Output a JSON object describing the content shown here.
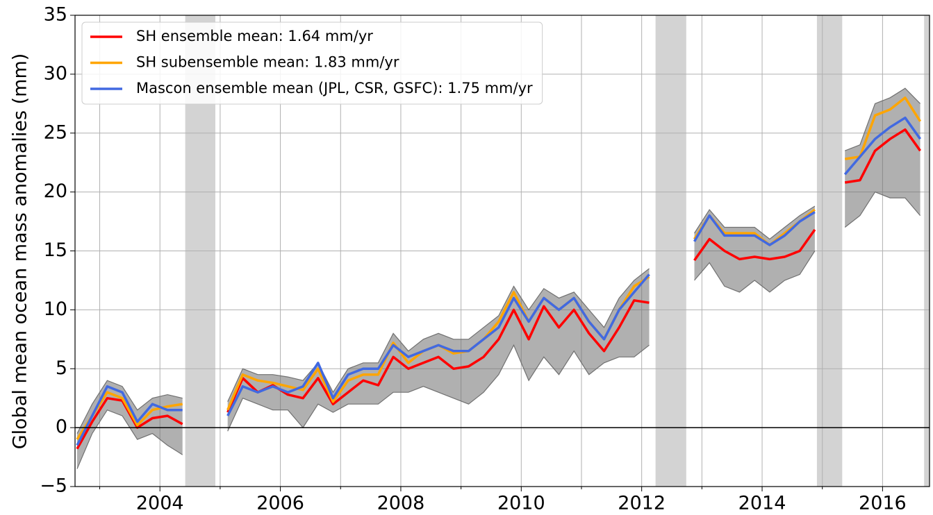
{
  "chart_data": {
    "type": "line",
    "ylabel": "Global mean ocean mass anomalies (mm)",
    "xlim": [
      2002.59,
      2016.78
    ],
    "ylim": [
      -5,
      35
    ],
    "xticks": [
      2004,
      2006,
      2008,
      2010,
      2012,
      2014,
      2016
    ],
    "xminorticks": [
      2003,
      2005,
      2007,
      2009,
      2011,
      2013,
      2015
    ],
    "yticks": [
      {
        "value": -5,
        "label": "−5"
      },
      0,
      5,
      10,
      15,
      20,
      25,
      30,
      35
    ],
    "grid": true,
    "legend": "upper left",
    "hline": 0,
    "gaps": [
      [
        2004.42,
        2004.92
      ],
      [
        2012.23,
        2012.74
      ],
      [
        2014.91,
        2015.33
      ],
      [
        2016.69,
        2016.78
      ]
    ],
    "gap_color": "#d3d3d3",
    "x": [
      2002.625,
      2002.875,
      2003.125,
      2003.375,
      2003.625,
      2003.875,
      2004.125,
      2004.375,
      2004.625,
      2004.875,
      2005.125,
      2005.375,
      2005.625,
      2005.875,
      2006.125,
      2006.375,
      2006.625,
      2006.875,
      2007.125,
      2007.375,
      2007.625,
      2007.875,
      2008.125,
      2008.375,
      2008.625,
      2008.875,
      2009.125,
      2009.375,
      2009.625,
      2009.875,
      2010.125,
      2010.375,
      2010.625,
      2010.875,
      2011.125,
      2011.375,
      2011.625,
      2011.875,
      2012.125,
      2012.375,
      2012.625,
      2012.875,
      2013.125,
      2013.375,
      2013.625,
      2013.875,
      2014.125,
      2014.375,
      2014.625,
      2014.875,
      2015.125,
      2015.375,
      2015.625,
      2015.875,
      2016.125,
      2016.375,
      2016.625
    ],
    "ensemble_color": "#707070",
    "ensemble_low": [
      -3.5,
      -0.5,
      1.5,
      1.0,
      -1.0,
      -0.5,
      -1.5,
      -2.3,
      null,
      null,
      -0.3,
      2.5,
      2.0,
      1.5,
      1.5,
      0,
      2.0,
      1.3,
      2.0,
      2.0,
      2.0,
      3.0,
      3.0,
      3.5,
      3.0,
      2.5,
      2.0,
      3.0,
      4.5,
      7.0,
      4.0,
      6.0,
      4.5,
      6.5,
      4.5,
      5.5,
      6.0,
      6.0,
      7.0,
      null,
      null,
      12.5,
      14.0,
      12.0,
      11.5,
      12.5,
      11.5,
      12.5,
      13.0,
      15.0,
      null,
      17.0,
      18.0,
      20.0,
      19.5,
      19.5,
      18.0
    ],
    "ensemble_high": [
      -0.5,
      2.0,
      4.0,
      3.5,
      1.5,
      2.5,
      2.8,
      2.5,
      null,
      null,
      2.2,
      5.0,
      4.5,
      4.5,
      4.3,
      4.0,
      5.5,
      3.0,
      5.0,
      5.5,
      5.5,
      8.0,
      6.5,
      7.5,
      8.0,
      7.5,
      7.5,
      8.5,
      9.5,
      12.0,
      10.0,
      11.8,
      11.0,
      11.5,
      10.0,
      8.5,
      11.0,
      12.5,
      13.5,
      null,
      null,
      16.5,
      18.5,
      17.0,
      17.0,
      17.0,
      16.0,
      17.0,
      18.0,
      18.8,
      null,
      23.5,
      24.0,
      27.5,
      28.0,
      28.8,
      27.5
    ],
    "series": [
      {
        "name": "SH ensemble mean: 1.64 mm/yr",
        "color": "#ff0000",
        "values": [
          -1.8,
          0.5,
          2.5,
          2.3,
          0.0,
          0.8,
          1.0,
          0.3,
          null,
          null,
          1.3,
          4.2,
          3.0,
          3.6,
          2.8,
          2.5,
          4.2,
          2.0,
          3.0,
          4.0,
          3.6,
          6.0,
          5.0,
          5.5,
          6.0,
          5.0,
          5.2,
          6.0,
          7.5,
          10.0,
          7.5,
          10.3,
          8.5,
          10.0,
          8.0,
          6.5,
          8.5,
          10.8,
          10.6,
          null,
          null,
          14.2,
          16.0,
          15.0,
          14.3,
          14.5,
          14.3,
          14.5,
          15.0,
          16.8,
          null,
          20.8,
          21.0,
          23.5,
          24.5,
          25.3,
          23.5
        ]
      },
      {
        "name": "SH subensemble mean: 1.83 mm/yr",
        "color": "#ffa500",
        "values": [
          -1.0,
          1.0,
          3.0,
          2.5,
          0.2,
          1.5,
          1.8,
          2.0,
          null,
          null,
          1.5,
          4.5,
          4.0,
          3.8,
          3.5,
          3.2,
          5.0,
          2.2,
          4.0,
          4.5,
          4.5,
          7.2,
          5.5,
          6.5,
          7.0,
          6.3,
          6.5,
          7.5,
          9.0,
          11.5,
          9.0,
          11.0,
          10.0,
          11.0,
          9.0,
          7.5,
          10.0,
          12.0,
          12.8,
          null,
          null,
          16.0,
          18.0,
          16.5,
          16.5,
          16.5,
          15.5,
          16.5,
          17.5,
          18.5,
          null,
          22.8,
          23.0,
          26.5,
          27.0,
          28.0,
          26.0
        ]
      },
      {
        "name": "Mascon ensemble mean (JPL, CSR, GSFC): 1.75 mm/yr",
        "color": "#4169e1",
        "values": [
          -1.5,
          1.0,
          3.5,
          3.0,
          0.5,
          2.0,
          1.5,
          1.5,
          null,
          null,
          1.0,
          3.5,
          3.0,
          3.5,
          3.0,
          3.5,
          5.5,
          2.5,
          4.5,
          5.0,
          5.0,
          7.0,
          6.0,
          6.5,
          7.0,
          6.5,
          6.5,
          7.5,
          8.5,
          11.0,
          9.0,
          11.0,
          10.0,
          11.0,
          9.0,
          7.5,
          10.0,
          11.5,
          13.0,
          null,
          null,
          15.8,
          18.0,
          16.3,
          16.3,
          16.3,
          15.5,
          16.3,
          17.5,
          18.3,
          null,
          21.5,
          23.0,
          24.5,
          25.5,
          26.3,
          24.5
        ]
      }
    ]
  }
}
